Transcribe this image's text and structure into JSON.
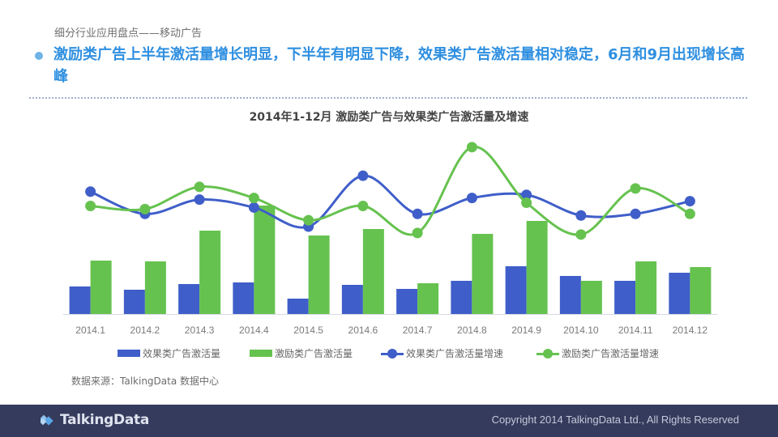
{
  "page": {
    "section_label": "细分行业应用盘点——移动广告",
    "headline": "激励类广告上半年激活量增长明显，下半年有明显下降，效果类广告激活量相对稳定，6月和9月出现增长高峰",
    "source": "数据来源：TalkingData 数据中心"
  },
  "footer": {
    "logo_text": "TalkingData",
    "copyright": "Copyright 2014 TalkingData Ltd., All Rights Reserved"
  },
  "colors": {
    "headline": "#2f8fe0",
    "effect": "#3f5ec9",
    "incentive": "#66c24f",
    "footer_bg": "#353b5c"
  },
  "chart_data": {
    "type": "bar",
    "title": "2014年1-12月 激励类广告与效果类广告激活量及增速",
    "categories": [
      "2014.1",
      "2014.2",
      "2014.3",
      "2014.4",
      "2014.5",
      "2014.6",
      "2014.7",
      "2014.8",
      "2014.9",
      "2014.10",
      "2014.11",
      "2014.12"
    ],
    "series": [
      {
        "name": "效果类广告激活量",
        "type": "bar",
        "color": "#3f5ec9",
        "values": [
          34,
          30,
          37,
          39,
          19,
          36,
          31,
          41,
          59,
          47,
          41,
          51
        ]
      },
      {
        "name": "激励类广告激活量",
        "type": "bar",
        "color": "#66c24f",
        "values": [
          66,
          65,
          103,
          134,
          97,
          105,
          38,
          99,
          115,
          41,
          65,
          58
        ]
      },
      {
        "name": "效果类广告激活量增速",
        "type": "line",
        "color": "#3f5ec9",
        "values": [
          77,
          63,
          72,
          67,
          55,
          87,
          63,
          73,
          75,
          62,
          63,
          71
        ]
      },
      {
        "name": "激励类广告激活量增速",
        "type": "line",
        "color": "#66c24f",
        "values": [
          68,
          66,
          80,
          73,
          59,
          68,
          51,
          105,
          70,
          50,
          79,
          63
        ]
      }
    ],
    "xlabel": "",
    "ylabel": "",
    "ylim": [
      0,
      140
    ],
    "line_ylim": [
      0,
      110
    ],
    "grid": false,
    "legend": "bottom"
  }
}
